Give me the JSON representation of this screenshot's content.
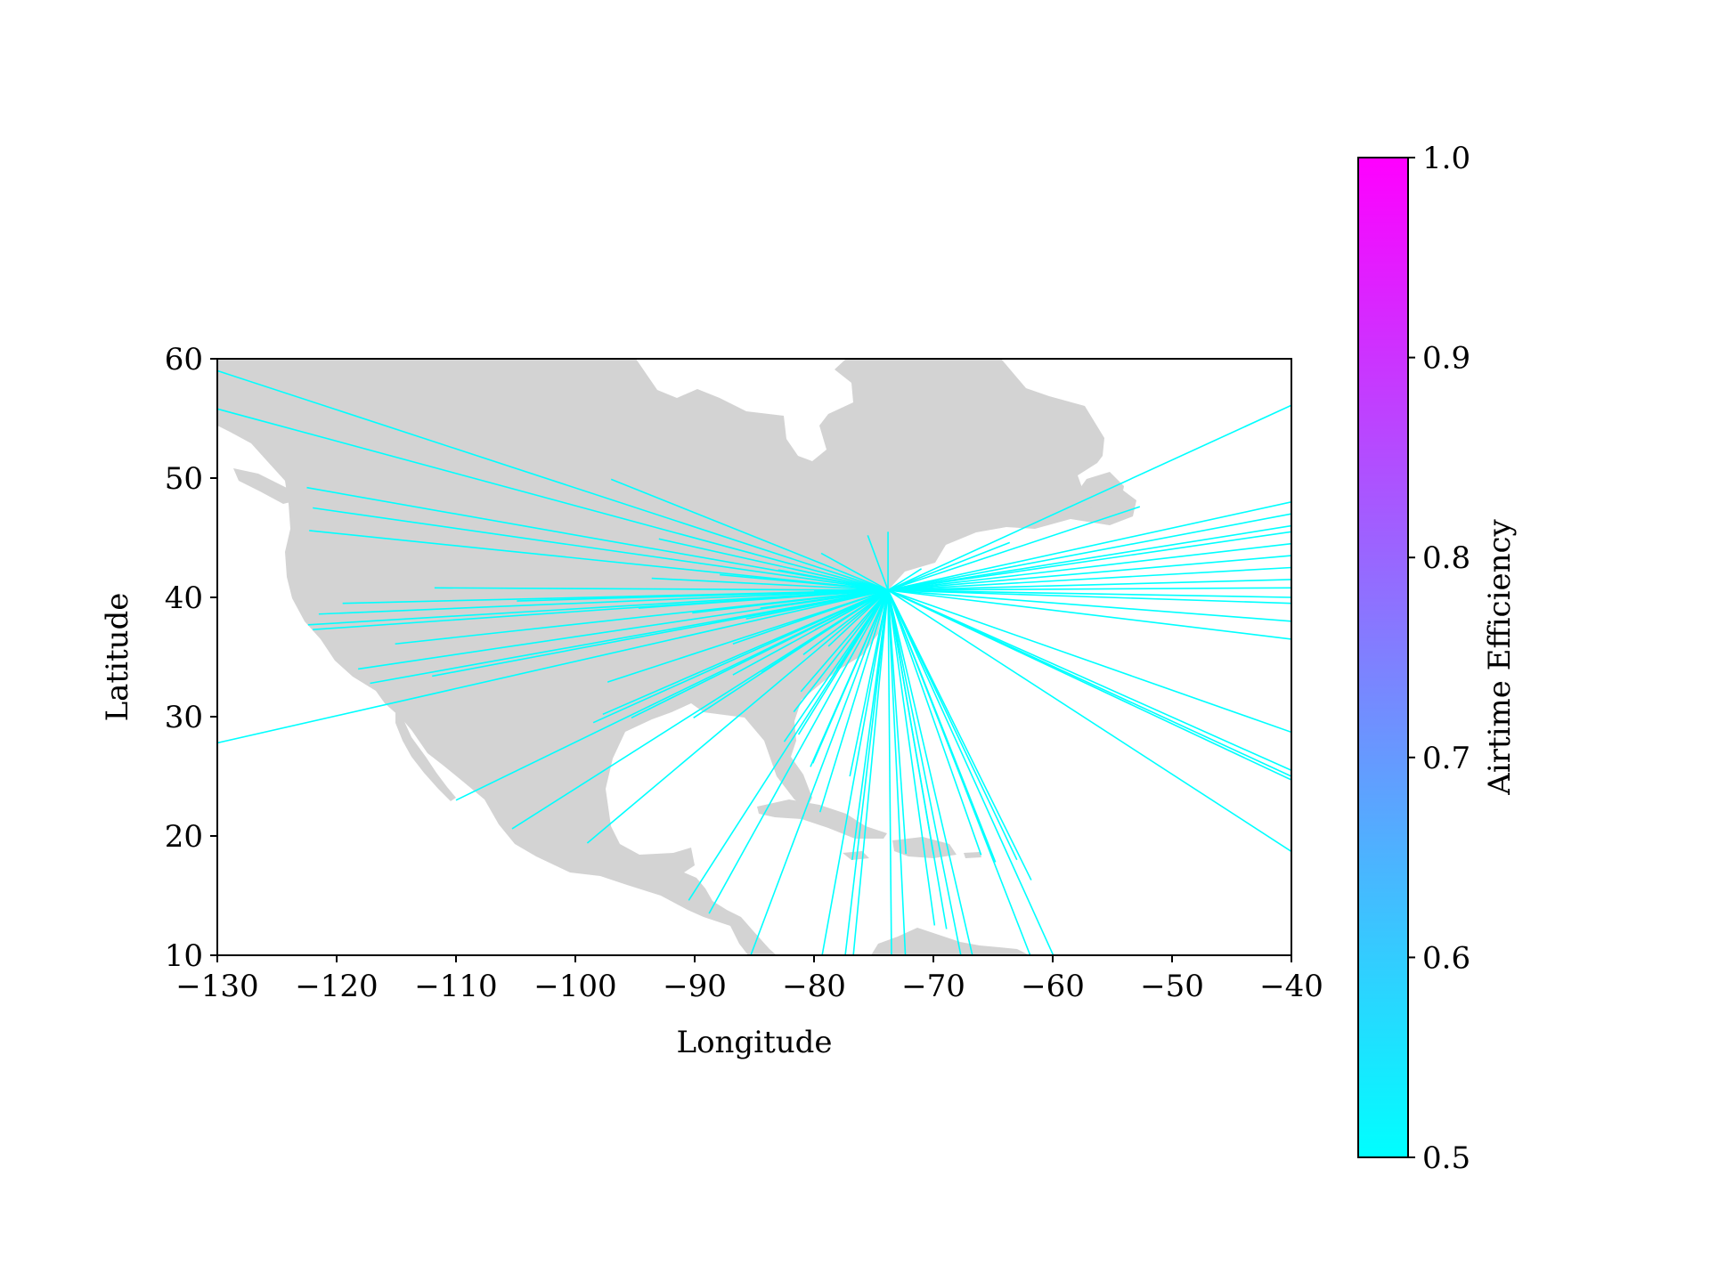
{
  "chart_data": {
    "type": "line",
    "subtype": "flight-route map",
    "title": "",
    "xlabel": "Longitude",
    "ylabel": "Latitude",
    "xlim": [
      -130,
      -40
    ],
    "ylim": [
      10,
      60
    ],
    "xticks": [
      -130,
      -120,
      -110,
      -100,
      -90,
      -80,
      -70,
      -60,
      -50,
      -40
    ],
    "xtick_labels": [
      "−130",
      "−120",
      "−110",
      "−100",
      "−90",
      "−80",
      "−70",
      "−60",
      "−50",
      "−40"
    ],
    "yticks": [
      10,
      20,
      30,
      40,
      50,
      60
    ],
    "ytick_labels": [
      "10",
      "20",
      "30",
      "40",
      "50",
      "60"
    ],
    "grid": false,
    "land_color": "#d3d3d3",
    "route_color": "#00ffff",
    "hub": [
      -73.8,
      40.6
    ],
    "destinations": [
      [
        -130,
        59.0
      ],
      [
        -130,
        55.8
      ],
      [
        -122.5,
        49.2
      ],
      [
        -122.0,
        47.5
      ],
      [
        -122.3,
        45.6
      ],
      [
        -97.0,
        49.9
      ],
      [
        -93.0,
        44.9
      ],
      [
        -111.8,
        40.8
      ],
      [
        -104.9,
        39.7
      ],
      [
        -119.5,
        39.5
      ],
      [
        -121.5,
        38.6
      ],
      [
        -122.4,
        37.7
      ],
      [
        -122.0,
        37.3
      ],
      [
        -115.1,
        36.1
      ],
      [
        -118.2,
        34.0
      ],
      [
        -117.2,
        32.8
      ],
      [
        -112.0,
        33.4
      ],
      [
        -97.3,
        32.9
      ],
      [
        -95.3,
        29.9
      ],
      [
        -97.7,
        30.2
      ],
      [
        -98.5,
        29.5
      ],
      [
        -90.1,
        29.9
      ],
      [
        -86.8,
        33.5
      ],
      [
        -84.4,
        33.7
      ],
      [
        -81.7,
        30.4
      ],
      [
        -82.5,
        27.9
      ],
      [
        -80.1,
        26.1
      ],
      [
        -80.3,
        25.8
      ],
      [
        -81.3,
        28.5
      ],
      [
        -77.0,
        25.0
      ],
      [
        -130,
        27.8
      ],
      [
        -110.0,
        23.0
      ],
      [
        -105.3,
        20.6
      ],
      [
        -99.0,
        19.4
      ],
      [
        -90.5,
        14.6
      ],
      [
        -88.8,
        13.5
      ],
      [
        -85.3,
        10.0
      ],
      [
        -79.5,
        9.0
      ],
      [
        -77.5,
        9.0
      ],
      [
        -76.8,
        9.0
      ],
      [
        -76.8,
        18.0
      ],
      [
        -79.5,
        22.0
      ],
      [
        -73.5,
        9.0
      ],
      [
        -72.3,
        9.0
      ],
      [
        -72.3,
        18.5
      ],
      [
        -70.0,
        18.5
      ],
      [
        -69.9,
        12.5
      ],
      [
        -68.9,
        12.2
      ],
      [
        -66.0,
        18.4
      ],
      [
        -64.8,
        17.8
      ],
      [
        -63.0,
        18.0
      ],
      [
        -61.8,
        16.3
      ],
      [
        -61.5,
        9.0
      ],
      [
        -59.5,
        9.0
      ],
      [
        -66.5,
        9.0
      ],
      [
        -67.5,
        9.0
      ],
      [
        -40,
        56.1
      ],
      [
        -40,
        48.0
      ],
      [
        -40,
        47.0
      ],
      [
        -40,
        46.0
      ],
      [
        -40,
        45.5
      ],
      [
        -40,
        44.5
      ],
      [
        -40,
        43.5
      ],
      [
        -40,
        42.5
      ],
      [
        -40,
        41.5
      ],
      [
        -40,
        40.8
      ],
      [
        -40,
        40.0
      ],
      [
        -40,
        39.5
      ],
      [
        -40,
        38.0
      ],
      [
        -40,
        36.5
      ],
      [
        -40,
        28.7
      ],
      [
        -40,
        25.5
      ],
      [
        -40,
        25.0
      ],
      [
        -40,
        24.7
      ],
      [
        -40,
        18.7
      ],
      [
        -52.7,
        47.6
      ],
      [
        -63.6,
        44.6
      ],
      [
        -71.0,
        42.4
      ],
      [
        -73.8,
        45.5
      ],
      [
        -75.5,
        45.2
      ],
      [
        -79.4,
        43.7
      ],
      [
        -80.0,
        40.5
      ],
      [
        -83.0,
        42.3
      ],
      [
        -87.9,
        41.9
      ],
      [
        -90.2,
        38.7
      ],
      [
        -86.8,
        36.1
      ],
      [
        -84.5,
        39.1
      ],
      [
        -81.7,
        41.4
      ],
      [
        -79.9,
        37.3
      ],
      [
        -76.0,
        39.2
      ],
      [
        -77.0,
        38.9
      ],
      [
        -78.8,
        35.9
      ],
      [
        -80.9,
        35.2
      ],
      [
        -76.3,
        36.9
      ],
      [
        -81.1,
        32.1
      ],
      [
        -93.6,
        41.6
      ],
      [
        -94.7,
        39.1
      ],
      [
        -85.7,
        38.2
      ],
      [
        -78.1,
        34.0
      ]
    ]
  },
  "colorbar": {
    "label": "Airtime Efficiency",
    "min": 0.5,
    "max": 1.0,
    "ticks": [
      0.5,
      0.6,
      0.7,
      0.8,
      0.9,
      1.0
    ],
    "tick_labels": [
      "0.5",
      "0.6",
      "0.7",
      "0.8",
      "0.9",
      "1.0"
    ],
    "colormap": "cool",
    "color_low": "#00ffff",
    "color_high": "#ff00ff"
  }
}
